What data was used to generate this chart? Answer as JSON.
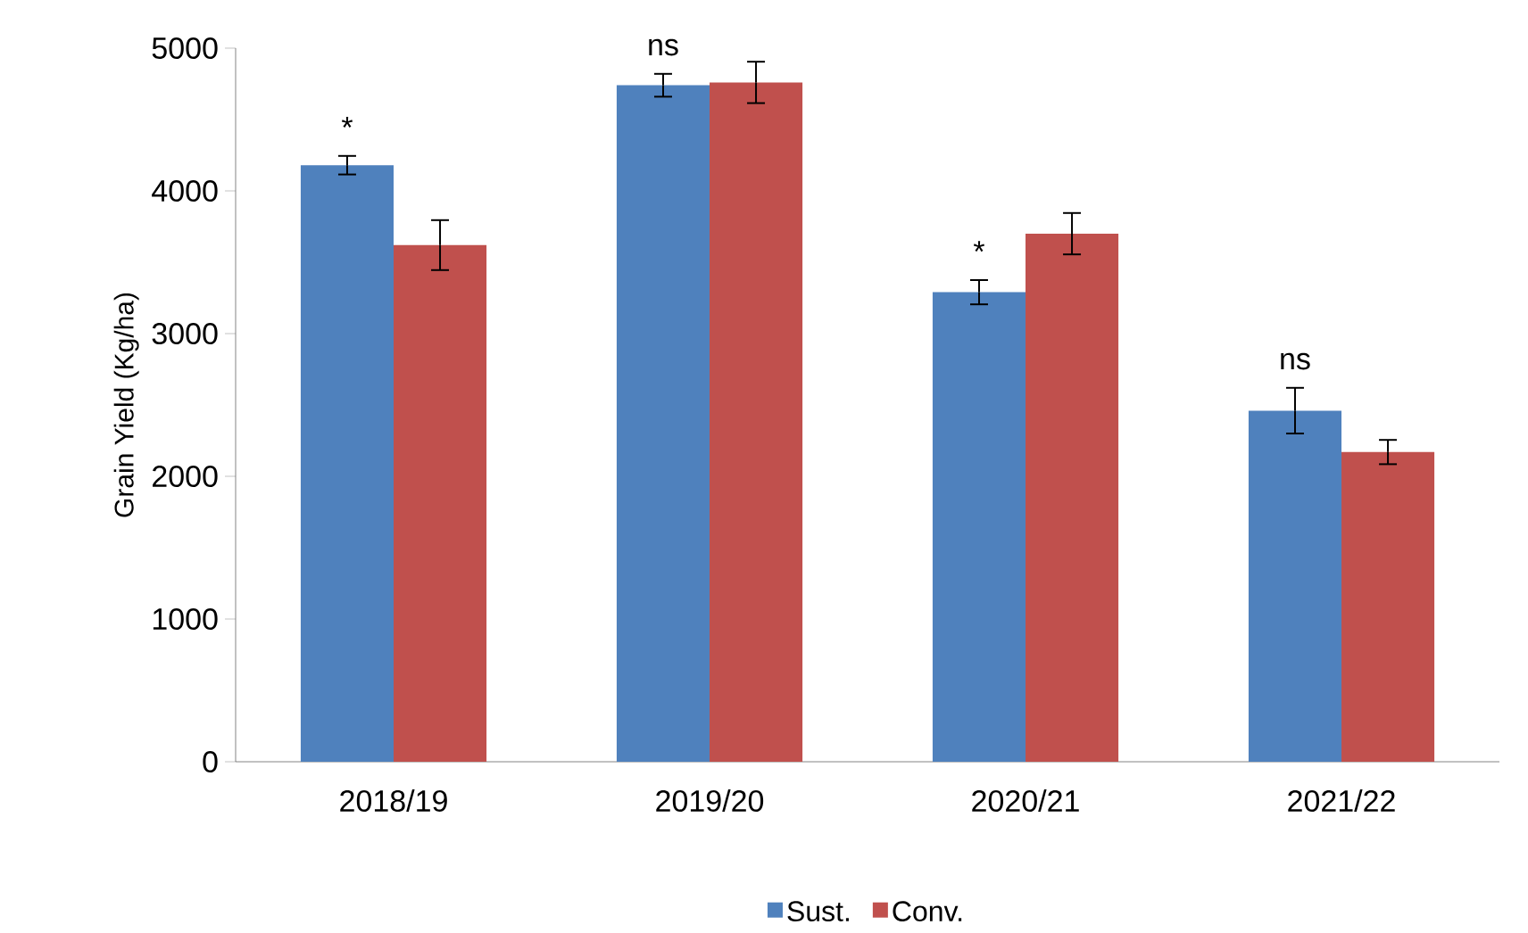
{
  "chart_data": {
    "type": "bar",
    "ylabel": "Grain Yield (Kg/ha)",
    "categories": [
      "2018/19",
      "2019/20",
      "2020/21",
      "2021/22"
    ],
    "series": [
      {
        "name": "Sust.",
        "color": "#4f81bd",
        "values": [
          4180,
          4740,
          3290,
          2460
        ],
        "errors": [
          65,
          80,
          85,
          160
        ]
      },
      {
        "name": "Conv.",
        "color": "#c0504d",
        "values": [
          3620,
          4760,
          3700,
          2170
        ],
        "errors": [
          175,
          145,
          145,
          85
        ]
      }
    ],
    "ylim": [
      0,
      5000
    ],
    "yticks": [
      0,
      1000,
      2000,
      3000,
      4000,
      5000
    ],
    "annotations": [
      "*",
      "ns",
      "*",
      "ns"
    ],
    "grid": false,
    "legend": "bottom"
  }
}
